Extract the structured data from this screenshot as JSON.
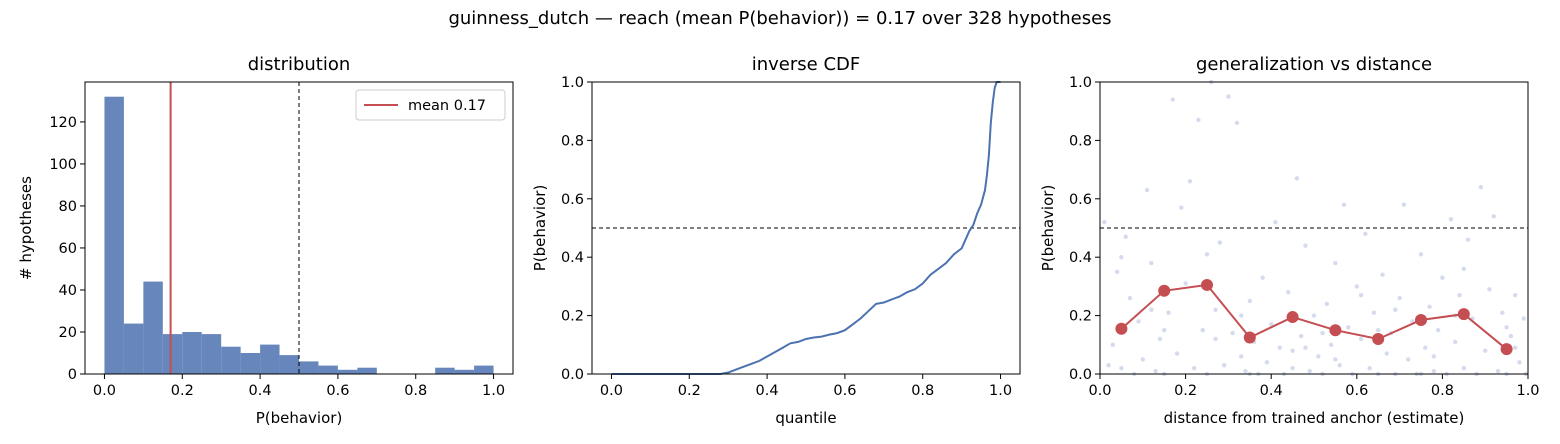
{
  "suptitle": "guinness_dutch  —  reach (mean P(behavior)) = 0.17  over 328 hypotheses",
  "colors": {
    "blue": "#4c72b0",
    "red": "#c44e52",
    "scatter": "#b8c3e0"
  },
  "chart_data": [
    {
      "type": "bar",
      "title": "distribution",
      "xlabel": "P(behavior)",
      "ylabel": "# hypotheses",
      "xlim": [
        -0.05,
        1.05
      ],
      "ylim": [
        0,
        139
      ],
      "xticks": [
        0.0,
        0.2,
        0.4,
        0.6,
        0.8,
        1.0
      ],
      "yticks": [
        0,
        20,
        40,
        60,
        80,
        100,
        120
      ],
      "bin_edges": [
        0.0,
        0.05,
        0.1,
        0.15,
        0.2,
        0.25,
        0.3,
        0.35,
        0.4,
        0.45,
        0.5,
        0.55,
        0.6,
        0.65,
        0.7,
        0.75,
        0.8,
        0.85,
        0.9,
        0.95,
        1.0
      ],
      "values": [
        132,
        24,
        44,
        19,
        20,
        19,
        13,
        10,
        14,
        9,
        6,
        4,
        2,
        3,
        0,
        0,
        0,
        3,
        2,
        4
      ],
      "mean_line": 0.17,
      "threshold_line": 0.5,
      "legend": [
        {
          "label": "mean 0.17"
        }
      ],
      "legend_position": "upper right",
      "grid": false
    },
    {
      "type": "line",
      "title": "inverse CDF",
      "xlabel": "quantile",
      "ylabel": "P(behavior)",
      "xlim": [
        -0.05,
        1.05
      ],
      "ylim": [
        0,
        1
      ],
      "xticks": [
        0.0,
        0.2,
        0.4,
        0.6,
        0.8,
        1.0
      ],
      "yticks": [
        0.0,
        0.2,
        0.4,
        0.6,
        0.8,
        1.0
      ],
      "x": [
        0.0,
        0.28,
        0.3,
        0.32,
        0.34,
        0.36,
        0.38,
        0.4,
        0.42,
        0.44,
        0.46,
        0.48,
        0.5,
        0.52,
        0.54,
        0.56,
        0.58,
        0.6,
        0.62,
        0.64,
        0.66,
        0.68,
        0.7,
        0.72,
        0.74,
        0.76,
        0.78,
        0.8,
        0.82,
        0.84,
        0.86,
        0.88,
        0.9,
        0.91,
        0.92,
        0.93,
        0.94,
        0.95,
        0.96,
        0.965,
        0.97,
        0.975,
        0.98,
        0.985,
        0.99,
        1.0
      ],
      "y": [
        0.0,
        0.0,
        0.005,
        0.015,
        0.025,
        0.035,
        0.045,
        0.06,
        0.075,
        0.09,
        0.105,
        0.11,
        0.12,
        0.125,
        0.128,
        0.135,
        0.14,
        0.15,
        0.17,
        0.19,
        0.215,
        0.24,
        0.245,
        0.255,
        0.265,
        0.28,
        0.29,
        0.31,
        0.34,
        0.36,
        0.38,
        0.41,
        0.43,
        0.46,
        0.49,
        0.51,
        0.55,
        0.58,
        0.63,
        0.68,
        0.75,
        0.86,
        0.93,
        0.98,
        1.0,
        1.0
      ],
      "threshold_line": 0.5,
      "grid": false
    },
    {
      "type": "scatter",
      "title": "generalization vs distance",
      "xlabel": "distance from trained anchor (estimate)",
      "ylabel": "P(behavior)",
      "xlim": [
        0,
        1
      ],
      "ylim": [
        0,
        1
      ],
      "xticks": [
        0.0,
        0.2,
        0.4,
        0.6,
        0.8,
        1.0
      ],
      "yticks": [
        0.0,
        0.2,
        0.4,
        0.6,
        0.8,
        1.0
      ],
      "binned_x": [
        0.05,
        0.15,
        0.25,
        0.35,
        0.45,
        0.55,
        0.65,
        0.75,
        0.85,
        0.95
      ],
      "binned_y": [
        0.155,
        0.285,
        0.305,
        0.125,
        0.195,
        0.15,
        0.12,
        0.185,
        0.205,
        0.085
      ],
      "scatter_points": [
        [
          0.01,
          0.52
        ],
        [
          0.02,
          0.03
        ],
        [
          0.03,
          0.1
        ],
        [
          0.04,
          0.35
        ],
        [
          0.05,
          0.02
        ],
        [
          0.06,
          0.47
        ],
        [
          0.07,
          0.26
        ],
        [
          0.08,
          0.0
        ],
        [
          0.09,
          0.18
        ],
        [
          0.1,
          0.05
        ],
        [
          0.11,
          0.63
        ],
        [
          0.12,
          0.38
        ],
        [
          0.13,
          0.01
        ],
        [
          0.14,
          0.12
        ],
        [
          0.15,
          0.0
        ],
        [
          0.16,
          0.21
        ],
        [
          0.17,
          0.94
        ],
        [
          0.18,
          0.07
        ],
        [
          0.19,
          0.57
        ],
        [
          0.2,
          0.31
        ],
        [
          0.21,
          0.66
        ],
        [
          0.22,
          0.02
        ],
        [
          0.23,
          0.87
        ],
        [
          0.24,
          0.15
        ],
        [
          0.25,
          0.0
        ],
        [
          0.26,
          1.0
        ],
        [
          0.27,
          0.22
        ],
        [
          0.28,
          0.45
        ],
        [
          0.29,
          0.03
        ],
        [
          0.3,
          0.95
        ],
        [
          0.31,
          0.14
        ],
        [
          0.32,
          0.86
        ],
        [
          0.33,
          0.06
        ],
        [
          0.34,
          0.01
        ],
        [
          0.35,
          0.25
        ],
        [
          0.36,
          0.11
        ],
        [
          0.37,
          0.0
        ],
        [
          0.38,
          0.33
        ],
        [
          0.39,
          0.04
        ],
        [
          0.4,
          0.17
        ],
        [
          0.41,
          0.52
        ],
        [
          0.42,
          0.09
        ],
        [
          0.43,
          0.0
        ],
        [
          0.44,
          0.28
        ],
        [
          0.45,
          0.02
        ],
        [
          0.46,
          0.67
        ],
        [
          0.47,
          0.13
        ],
        [
          0.48,
          0.44
        ],
        [
          0.49,
          0.01
        ],
        [
          0.5,
          0.2
        ],
        [
          0.51,
          0.06
        ],
        [
          0.52,
          0.0
        ],
        [
          0.53,
          0.24
        ],
        [
          0.54,
          0.1
        ],
        [
          0.55,
          0.38
        ],
        [
          0.56,
          0.03
        ],
        [
          0.57,
          0.58
        ],
        [
          0.58,
          0.16
        ],
        [
          0.59,
          0.0
        ],
        [
          0.6,
          0.3
        ],
        [
          0.61,
          0.12
        ],
        [
          0.62,
          0.48
        ],
        [
          0.63,
          0.02
        ],
        [
          0.64,
          0.21
        ],
        [
          0.65,
          0.0
        ],
        [
          0.66,
          0.34
        ],
        [
          0.67,
          0.07
        ],
        [
          0.68,
          0.14
        ],
        [
          0.69,
          0.0
        ],
        [
          0.7,
          0.26
        ],
        [
          0.71,
          0.58
        ],
        [
          0.72,
          0.05
        ],
        [
          0.73,
          0.18
        ],
        [
          0.74,
          0.0
        ],
        [
          0.75,
          0.41
        ],
        [
          0.76,
          0.09
        ],
        [
          0.77,
          0.23
        ],
        [
          0.78,
          0.01
        ],
        [
          0.79,
          0.15
        ],
        [
          0.8,
          0.33
        ],
        [
          0.81,
          0.0
        ],
        [
          0.82,
          0.53
        ],
        [
          0.83,
          0.11
        ],
        [
          0.84,
          0.27
        ],
        [
          0.85,
          0.02
        ],
        [
          0.86,
          0.46
        ],
        [
          0.87,
          0.19
        ],
        [
          0.88,
          0.0
        ],
        [
          0.89,
          0.64
        ],
        [
          0.9,
          0.08
        ],
        [
          0.91,
          0.29
        ],
        [
          0.92,
          0.54
        ],
        [
          0.93,
          0.01
        ],
        [
          0.94,
          0.21
        ],
        [
          0.95,
          0.0
        ],
        [
          0.96,
          0.13
        ],
        [
          0.97,
          0.27
        ],
        [
          0.98,
          0.04
        ],
        [
          0.99,
          0.19
        ],
        [
          0.995,
          0.0
        ],
        [
          0.05,
          0.4
        ],
        [
          0.15,
          0.15
        ],
        [
          0.25,
          0.41
        ],
        [
          0.35,
          0.0
        ],
        [
          0.45,
          0.08
        ],
        [
          0.55,
          0.05
        ],
        [
          0.65,
          0.15
        ],
        [
          0.75,
          0.0
        ],
        [
          0.85,
          0.36
        ],
        [
          0.95,
          0.16
        ],
        [
          0.12,
          0.22
        ],
        [
          0.27,
          0.12
        ],
        [
          0.33,
          0.2
        ],
        [
          0.48,
          0.09
        ],
        [
          0.52,
          0.14
        ],
        [
          0.61,
          0.27
        ],
        [
          0.69,
          0.22
        ],
        [
          0.78,
          0.06
        ],
        [
          0.83,
          0.2
        ],
        [
          0.97,
          0.09
        ]
      ],
      "threshold_line": 0.5,
      "grid": false
    }
  ]
}
